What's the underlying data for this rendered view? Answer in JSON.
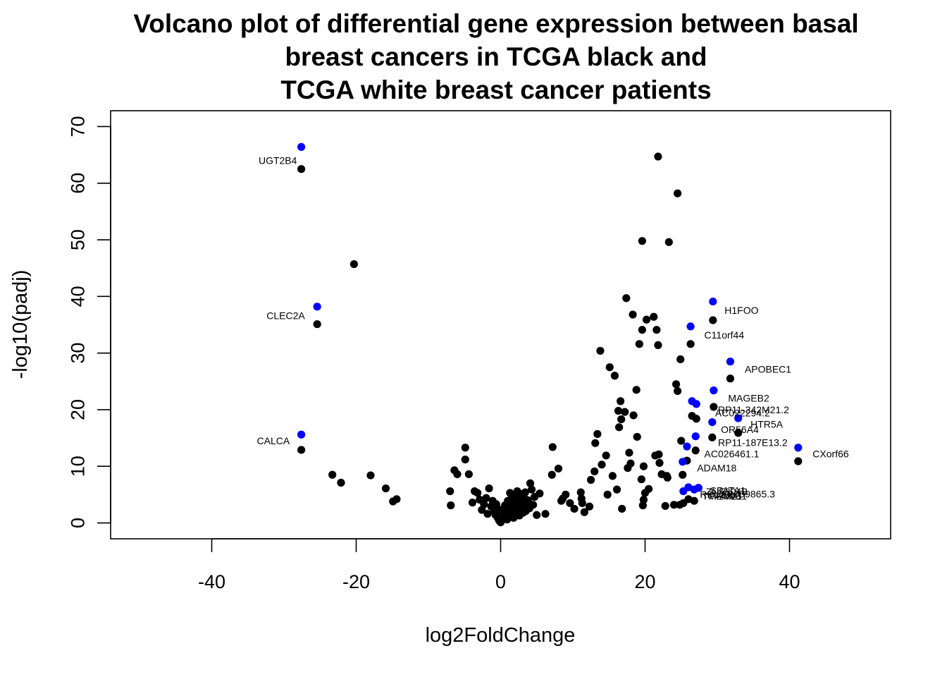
{
  "chart_data": {
    "type": "scatter",
    "title_lines": [
      "Volcano plot of differential gene expression between basal",
      "breast cancers in TCGA black and",
      "TCGA white breast cancer patients"
    ],
    "xlabel": "log2FoldChange",
    "ylabel": "-log10(padj)",
    "xlim": [
      -54,
      54
    ],
    "ylim": [
      -2.8,
      72.8
    ],
    "xticks": [
      -40,
      -20,
      0,
      20,
      40
    ],
    "yticks": [
      0,
      10,
      20,
      30,
      40,
      50,
      60,
      70
    ],
    "grid": false,
    "legend": "none",
    "colors": {
      "all_genes": "#000000",
      "highlighted": "#0000ff"
    },
    "series": [
      {
        "color": "#000000",
        "points": [
          [
            -27.6,
            62.5
          ],
          [
            -25.4,
            35.1
          ],
          [
            -27.6,
            12.9
          ],
          [
            -20.3,
            45.7
          ],
          [
            -23.3,
            8.5
          ],
          [
            -22.1,
            7.1
          ],
          [
            -18.0,
            8.4
          ],
          [
            -15.9,
            6.1
          ],
          [
            -14.9,
            3.8
          ],
          [
            -14.4,
            4.2
          ],
          [
            -7.0,
            5.6
          ],
          [
            -6.9,
            3.1
          ],
          [
            -6.4,
            9.3
          ],
          [
            -6.0,
            8.6
          ],
          [
            -4.9,
            13.3
          ],
          [
            -4.9,
            11.2
          ],
          [
            -4.4,
            8.6
          ],
          [
            -3.9,
            3.6
          ],
          [
            -3.6,
            5.6
          ],
          [
            -3.2,
            5.3
          ],
          [
            -2.9,
            4.1
          ],
          [
            -2.6,
            2.3
          ],
          [
            -2.3,
            3.3
          ],
          [
            -2.0,
            4.4
          ],
          [
            -1.8,
            1.6
          ],
          [
            -1.6,
            6.1
          ],
          [
            -1.3,
            2.9
          ],
          [
            -1.1,
            3.9
          ],
          [
            -0.9,
            2.1
          ],
          [
            -0.7,
            1.4
          ],
          [
            -0.6,
            3.3
          ],
          [
            -0.4,
            0.9
          ],
          [
            -0.3,
            2.4
          ],
          [
            -0.2,
            0.4
          ],
          [
            0.0,
            0.1
          ],
          [
            0.1,
            1.1
          ],
          [
            0.2,
            0.5
          ],
          [
            0.3,
            2.2
          ],
          [
            0.4,
            0.8
          ],
          [
            0.5,
            1.6
          ],
          [
            0.6,
            3.1
          ],
          [
            0.7,
            1.2
          ],
          [
            0.8,
            2.4
          ],
          [
            0.9,
            0.6
          ],
          [
            1.0,
            3.9
          ],
          [
            1.1,
            1.7
          ],
          [
            1.2,
            2.9
          ],
          [
            1.3,
            5.3
          ],
          [
            1.4,
            1.1
          ],
          [
            1.5,
            4.3
          ],
          [
            1.6,
            2.2
          ],
          [
            1.7,
            3.6
          ],
          [
            1.8,
            0.9
          ],
          [
            1.9,
            2.7
          ],
          [
            2.0,
            4.9
          ],
          [
            2.1,
            1.6
          ],
          [
            2.2,
            3.3
          ],
          [
            2.3,
            5.6
          ],
          [
            2.4,
            2.0
          ],
          [
            2.5,
            4.1
          ],
          [
            2.6,
            1.3
          ],
          [
            2.7,
            3.0
          ],
          [
            2.8,
            5.1
          ],
          [
            2.9,
            2.5
          ],
          [
            3.0,
            3.8
          ],
          [
            3.1,
            1.8
          ],
          [
            3.2,
            4.6
          ],
          [
            3.3,
            2.9
          ],
          [
            3.4,
            5.4
          ],
          [
            3.5,
            2.1
          ],
          [
            3.6,
            3.4
          ],
          [
            3.8,
            4.0
          ],
          [
            4.0,
            2.6
          ],
          [
            4.1,
            7.0
          ],
          [
            4.3,
            5.9
          ],
          [
            4.5,
            3.2
          ],
          [
            4.7,
            4.6
          ],
          [
            5.0,
            1.4
          ],
          [
            5.4,
            5.2
          ],
          [
            6.2,
            1.6
          ],
          [
            7.1,
            8.5
          ],
          [
            7.2,
            13.4
          ],
          [
            8.0,
            9.6
          ],
          [
            8.4,
            3.9
          ],
          [
            8.6,
            4.3
          ],
          [
            9.0,
            5.0
          ],
          [
            9.6,
            3.5
          ],
          [
            10.2,
            2.5
          ],
          [
            11.1,
            5.4
          ],
          [
            11.2,
            4.3
          ],
          [
            11.3,
            3.5
          ],
          [
            11.6,
            1.9
          ],
          [
            12.3,
            2.9
          ],
          [
            12.5,
            7.6
          ],
          [
            13.0,
            9.1
          ],
          [
            13.1,
            14.1
          ],
          [
            13.4,
            15.7
          ],
          [
            13.8,
            30.4
          ],
          [
            14.0,
            10.3
          ],
          [
            14.6,
            11.9
          ],
          [
            14.8,
            5.0
          ],
          [
            15.1,
            27.5
          ],
          [
            15.5,
            8.3
          ],
          [
            15.8,
            26.0
          ],
          [
            16.1,
            5.9
          ],
          [
            16.3,
            19.8
          ],
          [
            16.4,
            16.9
          ],
          [
            16.6,
            21.5
          ],
          [
            16.7,
            18.3
          ],
          [
            16.8,
            2.5
          ],
          [
            17.2,
            19.6
          ],
          [
            17.4,
            39.7
          ],
          [
            17.6,
            9.7
          ],
          [
            17.8,
            12.4
          ],
          [
            18.0,
            10.5
          ],
          [
            18.3,
            36.8
          ],
          [
            18.4,
            19.0
          ],
          [
            18.8,
            23.5
          ],
          [
            18.9,
            15.2
          ],
          [
            19.2,
            31.6
          ],
          [
            19.5,
            7.7
          ],
          [
            19.6,
            49.8
          ],
          [
            19.6,
            34.1
          ],
          [
            19.7,
            3.1
          ],
          [
            19.8,
            4.1
          ],
          [
            19.8,
            10.0
          ],
          [
            20.0,
            5.3
          ],
          [
            20.2,
            35.9
          ],
          [
            20.5,
            6.0
          ],
          [
            21.2,
            36.4
          ],
          [
            21.4,
            11.9
          ],
          [
            21.6,
            34.1
          ],
          [
            21.8,
            64.7
          ],
          [
            21.8,
            31.4
          ],
          [
            21.9,
            12.1
          ],
          [
            22.0,
            10.6
          ],
          [
            22.3,
            8.6
          ],
          [
            22.8,
            3.0
          ],
          [
            23.0,
            8.3
          ],
          [
            23.1,
            8.0
          ],
          [
            23.3,
            49.6
          ],
          [
            24.0,
            3.2
          ],
          [
            24.3,
            24.5
          ],
          [
            24.5,
            58.2
          ],
          [
            24.5,
            23.3
          ],
          [
            24.8,
            3.2
          ],
          [
            24.9,
            28.9
          ],
          [
            25.0,
            14.5
          ],
          [
            25.2,
            8.5
          ],
          [
            25.3,
            3.5
          ],
          [
            25.8,
            11.0
          ],
          [
            26.0,
            4.2
          ],
          [
            26.3,
            31.6
          ],
          [
            26.5,
            18.9
          ],
          [
            26.8,
            3.9
          ],
          [
            27.0,
            12.8
          ],
          [
            27.1,
            18.4
          ],
          [
            29.3,
            15.1
          ],
          [
            29.4,
            35.8
          ],
          [
            29.5,
            20.5
          ],
          [
            32.9,
            15.9
          ],
          [
            31.8,
            25.5
          ],
          [
            41.2,
            10.9
          ]
        ]
      },
      {
        "color": "#0000ff",
        "points": [
          [
            -27.6,
            66.4
          ],
          [
            -25.4,
            38.2
          ],
          [
            -27.6,
            15.6
          ],
          [
            29.4,
            39.1
          ],
          [
            26.3,
            34.7
          ],
          [
            31.8,
            28.5
          ],
          [
            29.5,
            23.4
          ],
          [
            26.5,
            21.5
          ],
          [
            27.1,
            21.0
          ],
          [
            32.9,
            18.5
          ],
          [
            29.3,
            17.8
          ],
          [
            27.0,
            15.3
          ],
          [
            25.8,
            13.5
          ],
          [
            41.2,
            13.3
          ],
          [
            25.2,
            10.8
          ],
          [
            25.3,
            5.6
          ],
          [
            26.0,
            6.3
          ],
          [
            26.8,
            5.9
          ],
          [
            27.4,
            6.2
          ]
        ]
      }
    ],
    "annotations": [
      {
        "text": "UGT2B4",
        "x": -28.2,
        "y": 63.4,
        "anchor": "end"
      },
      {
        "text": "CLEC2A",
        "x": -27.1,
        "y": 36.0,
        "anchor": "end"
      },
      {
        "text": "CALCA",
        "x": -29.2,
        "y": 13.9,
        "anchor": "end"
      },
      {
        "text": "H1FOO",
        "x": 31.0,
        "y": 36.9,
        "anchor": "start"
      },
      {
        "text": "C11orf44",
        "x": 28.2,
        "y": 32.6,
        "anchor": "start"
      },
      {
        "text": "APOBEC1",
        "x": 33.8,
        "y": 26.5,
        "anchor": "start"
      },
      {
        "text": "MAGEB2",
        "x": 31.5,
        "y": 21.4,
        "anchor": "start"
      },
      {
        "text": "RP11-342M21.2",
        "x": 30.1,
        "y": 19.4,
        "anchor": "start"
      },
      {
        "text": "AC022294.2",
        "x": 29.7,
        "y": 18.8,
        "anchor": "start"
      },
      {
        "text": "HTR5A",
        "x": 34.6,
        "y": 16.8,
        "anchor": "start"
      },
      {
        "text": "OR56A4",
        "x": 30.5,
        "y": 15.9,
        "anchor": "start"
      },
      {
        "text": "RP11-187E13.2",
        "x": 30.1,
        "y": 13.6,
        "anchor": "start"
      },
      {
        "text": "CXorf66",
        "x": 43.2,
        "y": 11.6,
        "anchor": "start"
      },
      {
        "text": "AC026461.1",
        "x": 28.2,
        "y": 11.6,
        "anchor": "start"
      },
      {
        "text": "ADAM18",
        "x": 27.2,
        "y": 9.1,
        "anchor": "start"
      },
      {
        "text": "ZNF804B",
        "x": 28.4,
        "y": 4.9,
        "anchor": "start"
      },
      {
        "text": "RPL10L",
        "x": 27.6,
        "y": 4.4,
        "anchor": "start"
      },
      {
        "text": "SPATA1",
        "x": 29.0,
        "y": 5.1,
        "anchor": "start"
      },
      {
        "text": "AC009865.3",
        "x": 30.4,
        "y": 4.5,
        "anchor": "start"
      },
      {
        "text": "FAM9B",
        "x": 28.9,
        "y": 4.2,
        "anchor": "start"
      },
      {
        "text": "TMEM211",
        "x": 27.9,
        "y": 4.1,
        "anchor": "start"
      }
    ]
  }
}
